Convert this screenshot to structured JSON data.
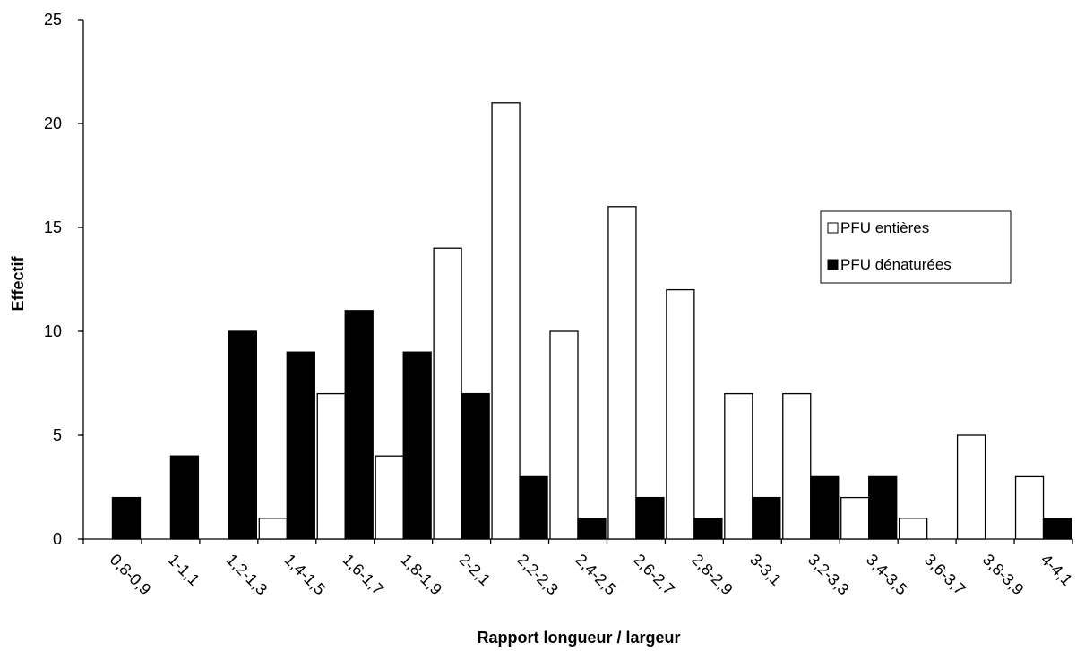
{
  "chart_data": {
    "type": "bar",
    "title": "",
    "xlabel": "Rapport longueur / largeur",
    "ylabel": "Effectif",
    "ylim": [
      0,
      25
    ],
    "yticks": [
      0,
      5,
      10,
      15,
      20,
      25
    ],
    "grid": false,
    "legend_position": "right",
    "categories": [
      "0,8-0,9",
      "1-1,1",
      "1,2-1,3",
      "1,4-1,5",
      "1,6-1,7",
      "1,8-1,9",
      "2-2,1",
      "2,2-2,3",
      "2,4-2,5",
      "2,6-2,7",
      "2,8-2,9",
      "3-3,1",
      "3,2-3,3",
      "3,4-3,5",
      "3,6-3,7",
      "3,8-3,9",
      "4-4,1"
    ],
    "series": [
      {
        "name": "PFU entières",
        "color": "#ffffff",
        "values": [
          0,
          0,
          0,
          1,
          7,
          4,
          14,
          21,
          10,
          16,
          12,
          7,
          7,
          2,
          1,
          5,
          3
        ]
      },
      {
        "name": "PFU dénaturées",
        "color": "#000000",
        "values": [
          2,
          4,
          10,
          9,
          11,
          9,
          7,
          3,
          1,
          2,
          1,
          2,
          3,
          3,
          0,
          0,
          1
        ]
      }
    ]
  }
}
